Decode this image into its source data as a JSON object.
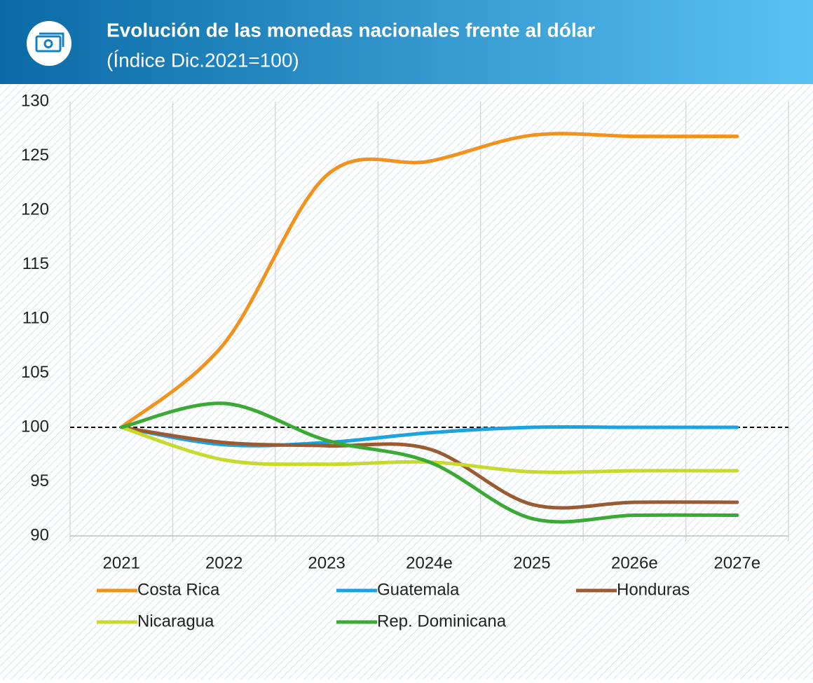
{
  "chart_data": {
    "type": "line",
    "title": "Evolución de las monedas nacionales frente al dólar",
    "subtitle": "(Índice Dic.2021=100)",
    "categories": [
      "2021",
      "2022",
      "2023",
      "2024e",
      "2025",
      "2026e",
      "2027e"
    ],
    "series": [
      {
        "name": "Costa Rica",
        "color": "#f0921b",
        "values": [
          100,
          107.7,
          123.2,
          124.5,
          126.9,
          126.8,
          126.8
        ]
      },
      {
        "name": "Guatemala",
        "color": "#1aa3df",
        "values": [
          100,
          98.4,
          98.6,
          99.5,
          100.0,
          100.0,
          100.0
        ]
      },
      {
        "name": "Honduras",
        "color": "#9a5b32",
        "values": [
          100,
          98.6,
          98.3,
          98.0,
          92.9,
          93.1,
          93.1
        ]
      },
      {
        "name": "Nicaragua",
        "color": "#c6d92c",
        "values": [
          100,
          97.0,
          96.6,
          96.8,
          95.9,
          96.0,
          96.0
        ]
      },
      {
        "name": "Rep. Dominicana",
        "color": "#3aaa35",
        "values": [
          100,
          102.2,
          98.8,
          96.8,
          91.6,
          91.9,
          91.9
        ]
      }
    ],
    "ylim": [
      90,
      130
    ],
    "yticks": [
      90,
      95,
      100,
      105,
      110,
      115,
      120,
      125,
      130
    ],
    "reference_line": 100,
    "legend": "bottom"
  }
}
